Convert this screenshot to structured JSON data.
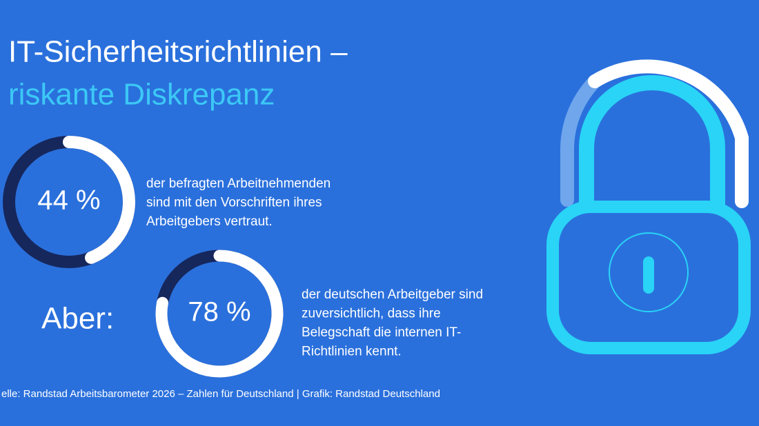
{
  "header": {
    "title_line1": "IT-Sicherheitsrichtlinien –",
    "title_line2": "riskante Diskrepanz"
  },
  "chart_data": [
    {
      "type": "donut",
      "values": [
        44
      ],
      "value_labels": [
        "44 %"
      ],
      "ylim": [
        0,
        100
      ],
      "color": "#ffffff",
      "track_color": "#16275c",
      "annotation": [
        "der befragten Arbeitnehmenden",
        "sind mit den Vorschriften ihres",
        "Arbeitgebers vertraut."
      ]
    },
    {
      "type": "donut",
      "label": "Aber:",
      "values": [
        78
      ],
      "value_labels": [
        "78 %"
      ],
      "ylim": [
        0,
        100
      ],
      "color": "#ffffff",
      "track_color": "#16275c",
      "annotation": [
        "der deutschen Arbeitgeber sind",
        "zuversichtlich, dass ihre",
        "Belegschaft die internen IT-",
        "Richtlinien kennt."
      ]
    }
  ],
  "source": "elle: Randstad Arbeitsbarometer 2026 – Zahlen für Deutschland | Grafik: Randstad Deutschland"
}
